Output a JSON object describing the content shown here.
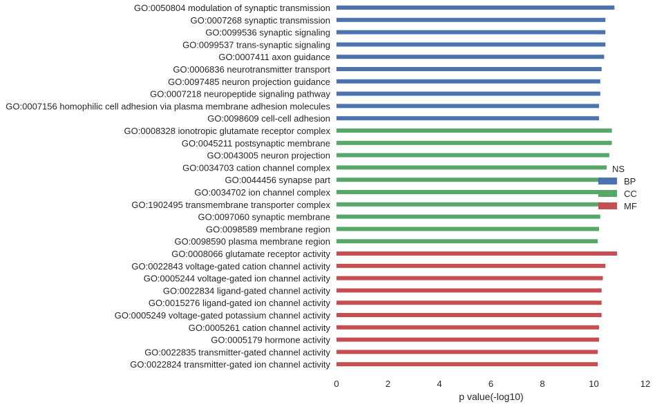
{
  "chart_data": {
    "type": "bar",
    "orientation": "horizontal",
    "xlabel": "p value(-log10)",
    "ylabel": "",
    "title": "",
    "xlim": [
      0,
      12
    ],
    "xticks": [
      0,
      2,
      4,
      6,
      8,
      10,
      12
    ],
    "grid": false,
    "legend": {
      "title": "NS",
      "placement": "right",
      "entries": [
        {
          "name": "BP",
          "color": "#4c72b0"
        },
        {
          "name": "CC",
          "color": "#55a868"
        },
        {
          "name": "MF",
          "color": "#c44e52"
        }
      ]
    },
    "series": [
      {
        "name": "BP",
        "color": "#4c72b0",
        "categories": [
          "GO:0050804 modulation of synaptic transmission",
          "GO:0007268 synaptic transmission",
          "GO:0099536 synaptic signaling",
          "GO:0099537 trans-synaptic signaling",
          "GO:0007411 axon guidance",
          "GO:0006836 neurotransmitter transport",
          "GO:0097485 neuron projection guidance",
          "GO:0007218 neuropeptide signaling pathway",
          "GO:0007156 homophilic cell adhesion via plasma membrane adhesion molecules",
          "GO:0098609 cell-cell adhesion"
        ],
        "values": [
          10.8,
          10.45,
          10.45,
          10.45,
          10.4,
          10.3,
          10.25,
          10.25,
          10.2,
          10.2
        ]
      },
      {
        "name": "CC",
        "color": "#55a868",
        "categories": [
          "GO:0008328 ionotropic glutamate receptor complex",
          "GO:0045211 postsynaptic membrane",
          "GO:0043005 neuron projection",
          "GO:0034703 cation channel complex",
          "GO:0044456 synapse part",
          "GO:0034702 ion channel complex",
          "GO:1902495 transmembrane transporter complex",
          "GO:0097060 synaptic membrane",
          "GO:0098589 membrane region",
          "GO:0098590 plasma membrane region"
        ],
        "values": [
          10.7,
          10.7,
          10.6,
          10.5,
          10.45,
          10.35,
          10.3,
          10.25,
          10.2,
          10.15
        ]
      },
      {
        "name": "MF",
        "color": "#c44e52",
        "categories": [
          "GO:0008066 glutamate receptor activity",
          "GO:0022843 voltage-gated cation channel activity",
          "GO:0005244 voltage-gated ion channel activity",
          "GO:0022834 ligand-gated channel activity",
          "GO:0015276 ligand-gated ion channel activity",
          "GO:0005249 voltage-gated potassium channel activity",
          "GO:0005261 cation channel activity",
          "GO:0005179 hormone activity",
          "GO:0022835 transmitter-gated channel activity",
          "GO:0022824 transmitter-gated ion channel activity"
        ],
        "values": [
          10.9,
          10.45,
          10.35,
          10.3,
          10.3,
          10.3,
          10.2,
          10.2,
          10.15,
          10.15
        ]
      }
    ]
  }
}
